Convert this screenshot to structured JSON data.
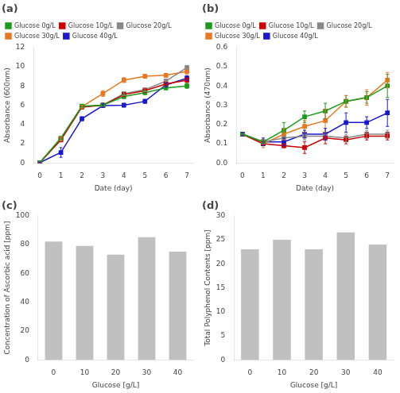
{
  "chart_data": [
    {
      "type": "line",
      "title": "(a)",
      "xlabel": "Date (day)",
      "ylabel": "Absorbance (600nm)",
      "x": [
        0,
        1,
        2,
        3,
        4,
        5,
        6,
        7
      ],
      "xlim": [
        -0.3,
        7.3
      ],
      "xticks": [
        0,
        1,
        2,
        3,
        4,
        5,
        6,
        7
      ],
      "ylim": [
        0,
        12
      ],
      "yticks": [
        0,
        2,
        4,
        6,
        8,
        10,
        12
      ],
      "grid": false,
      "legend": "upper left",
      "marker": "square",
      "series": [
        {
          "name": "Glucose 0g/L",
          "color": "#1a9c1a",
          "values": [
            0.05,
            2.6,
            5.9,
            6.0,
            6.9,
            7.3,
            7.8,
            8.0
          ],
          "errors": [
            0.05,
            0.15,
            0.15,
            0.2,
            0.2,
            0.2,
            0.2,
            0.25
          ]
        },
        {
          "name": "Glucose 10g/L",
          "color": "#cc0000",
          "values": [
            0.05,
            2.4,
            5.8,
            6.0,
            7.1,
            7.5,
            8.2,
            8.6
          ],
          "errors": [
            0.05,
            0.2,
            0.15,
            0.2,
            0.2,
            0.2,
            0.2,
            0.25
          ]
        },
        {
          "name": "Glucose 20g/L",
          "color": "#888888",
          "values": [
            0.05,
            2.5,
            5.85,
            6.0,
            7.2,
            7.6,
            8.5,
            9.9
          ],
          "errors": [
            0.05,
            0.2,
            0.15,
            0.2,
            0.2,
            0.2,
            0.2,
            0.2
          ]
        },
        {
          "name": "Glucose 30g/L",
          "color": "#e87820",
          "values": [
            0.05,
            2.55,
            5.85,
            7.2,
            8.6,
            9.0,
            9.1,
            9.5
          ],
          "errors": [
            0.05,
            0.2,
            0.15,
            0.3,
            0.25,
            0.2,
            0.2,
            0.3
          ]
        },
        {
          "name": "Glucose 40g/L",
          "color": "#1a1acc",
          "values": [
            0.05,
            1.1,
            4.6,
            5.95,
            6.0,
            6.4,
            8.1,
            8.8
          ],
          "errors": [
            0.05,
            0.5,
            0.2,
            0.2,
            0.2,
            0.2,
            0.2,
            0.25
          ]
        }
      ]
    },
    {
      "type": "line",
      "title": "(b)",
      "xlabel": "Date (day)",
      "ylabel": "Absorbance (470nm)",
      "x": [
        0,
        1,
        2,
        3,
        4,
        5,
        6,
        7
      ],
      "xlim": [
        -0.3,
        7.3
      ],
      "xticks": [
        0,
        1,
        2,
        3,
        4,
        5,
        6,
        7
      ],
      "ylim": [
        0.0,
        0.6
      ],
      "yticks": [
        {
          "value": 0.0,
          "label": "0.0"
        },
        0.1,
        0.2,
        0.3,
        0.4,
        0.5,
        0.6
      ],
      "grid": false,
      "legend": "upper left",
      "marker": "square",
      "series": [
        {
          "name": "Glucose 0g/L",
          "color": "#1a9c1a",
          "values": [
            0.15,
            0.11,
            0.17,
            0.24,
            0.27,
            0.32,
            0.34,
            0.4
          ],
          "errors": [
            0.01,
            0.01,
            0.04,
            0.03,
            0.04,
            0.03,
            0.03,
            0.06
          ]
        },
        {
          "name": "Glucose 10g/L",
          "color": "#cc0000",
          "values": [
            0.15,
            0.1,
            0.09,
            0.08,
            0.13,
            0.12,
            0.14,
            0.14
          ],
          "errors": [
            0.01,
            0.01,
            0.01,
            0.03,
            0.03,
            0.02,
            0.02,
            0.02
          ]
        },
        {
          "name": "Glucose 20g/L",
          "color": "#888888",
          "values": [
            0.15,
            0.11,
            0.13,
            0.14,
            0.14,
            0.13,
            0.15,
            0.15
          ],
          "errors": [
            0.01,
            0.01,
            0.01,
            0.02,
            0.02,
            0.02,
            0.02,
            0.02
          ]
        },
        {
          "name": "Glucose 30g/L",
          "color": "#e87820",
          "values": [
            0.15,
            0.1,
            0.15,
            0.19,
            0.22,
            0.32,
            0.34,
            0.43
          ],
          "errors": [
            0.01,
            0.02,
            0.03,
            0.03,
            0.06,
            0.03,
            0.04,
            0.04
          ]
        },
        {
          "name": "Glucose 40g/L",
          "color": "#1a1acc",
          "values": [
            0.15,
            0.11,
            0.11,
            0.15,
            0.15,
            0.21,
            0.21,
            0.26
          ],
          "errors": [
            0.01,
            0.02,
            0.02,
            0.02,
            0.03,
            0.05,
            0.03,
            0.07
          ]
        }
      ]
    },
    {
      "type": "bar",
      "title": "(c)",
      "xlabel": "Glucose [g/L]",
      "ylabel": "Concentration of Ascorbic acid [ppm]",
      "categories": [
        "0",
        "10",
        "20",
        "30",
        "40"
      ],
      "values": [
        82,
        79,
        73,
        85,
        75
      ],
      "color": "#c0c0c0",
      "ylim": [
        0,
        100
      ],
      "yticks": [
        0,
        20,
        40,
        60,
        80,
        100
      ],
      "grid": false
    },
    {
      "type": "bar",
      "title": "(d)",
      "xlabel": "Glucose [g/L]",
      "ylabel": "Total Polyphenol Contents [ppm]",
      "categories": [
        "0",
        "10",
        "20",
        "30",
        "40"
      ],
      "values": [
        23,
        25,
        23,
        26.5,
        24
      ],
      "color": "#c0c0c0",
      "ylim": [
        0,
        30
      ],
      "yticks": [
        0,
        5,
        10,
        15,
        20,
        25,
        30
      ],
      "grid": false
    }
  ]
}
